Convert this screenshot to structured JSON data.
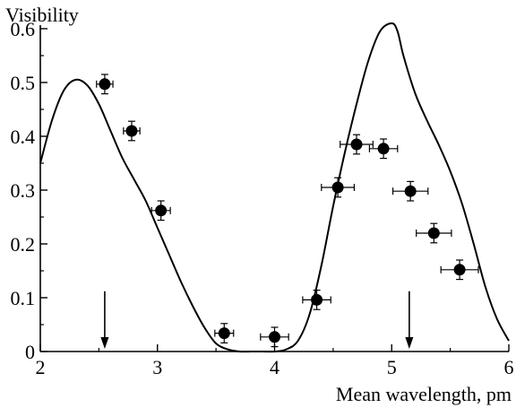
{
  "chart_data": {
    "type": "scatter",
    "title": "",
    "xlabel": "Mean wavelength, pm",
    "ylabel": "Visibility",
    "xlim": [
      2,
      6
    ],
    "ylim": [
      0,
      0.62
    ],
    "x_ticks": [
      "2",
      "3",
      "4",
      "5",
      "6"
    ],
    "y_ticks": [
      "0",
      "0.1",
      "0.2",
      "0.3",
      "0.4",
      "0.5",
      "0.6"
    ],
    "grid": false,
    "points": [
      {
        "x": 2.55,
        "y": 0.497,
        "xerr": 0.07,
        "yerr": 0.018
      },
      {
        "x": 2.78,
        "y": 0.41,
        "xerr": 0.07,
        "yerr": 0.018
      },
      {
        "x": 3.03,
        "y": 0.262,
        "xerr": 0.08,
        "yerr": 0.018
      },
      {
        "x": 3.57,
        "y": 0.034,
        "xerr": 0.08,
        "yerr": 0.018
      },
      {
        "x": 4.0,
        "y": 0.027,
        "xerr": 0.12,
        "yerr": 0.018
      },
      {
        "x": 4.36,
        "y": 0.096,
        "xerr": 0.12,
        "yerr": 0.018
      },
      {
        "x": 4.54,
        "y": 0.305,
        "xerr": 0.14,
        "yerr": 0.018
      },
      {
        "x": 4.7,
        "y": 0.385,
        "xerr": 0.14,
        "yerr": 0.018
      },
      {
        "x": 4.93,
        "y": 0.377,
        "xerr": 0.12,
        "yerr": 0.018
      },
      {
        "x": 5.16,
        "y": 0.298,
        "xerr": 0.15,
        "yerr": 0.018
      },
      {
        "x": 5.36,
        "y": 0.22,
        "xerr": 0.15,
        "yerr": 0.018
      },
      {
        "x": 5.58,
        "y": 0.152,
        "xerr": 0.16,
        "yerr": 0.018
      }
    ],
    "model_curve": [
      [
        2.0,
        0.35
      ],
      [
        2.1,
        0.43
      ],
      [
        2.2,
        0.485
      ],
      [
        2.3,
        0.505
      ],
      [
        2.4,
        0.495
      ],
      [
        2.5,
        0.46
      ],
      [
        2.6,
        0.41
      ],
      [
        2.7,
        0.36
      ],
      [
        2.8,
        0.32
      ],
      [
        2.9,
        0.28
      ],
      [
        3.0,
        0.23
      ],
      [
        3.1,
        0.18
      ],
      [
        3.2,
        0.13
      ],
      [
        3.3,
        0.085
      ],
      [
        3.4,
        0.045
      ],
      [
        3.5,
        0.015
      ],
      [
        3.6,
        0.004
      ],
      [
        3.7,
        0.0
      ],
      [
        3.8,
        0.0
      ],
      [
        3.9,
        0.0
      ],
      [
        4.0,
        0.0
      ],
      [
        4.1,
        0.004
      ],
      [
        4.2,
        0.02
      ],
      [
        4.3,
        0.07
      ],
      [
        4.4,
        0.16
      ],
      [
        4.5,
        0.27
      ],
      [
        4.6,
        0.37
      ],
      [
        4.7,
        0.46
      ],
      [
        4.8,
        0.54
      ],
      [
        4.9,
        0.595
      ],
      [
        5.0,
        0.61
      ],
      [
        5.05,
        0.595
      ],
      [
        5.1,
        0.55
      ],
      [
        5.2,
        0.48
      ],
      [
        5.3,
        0.43
      ],
      [
        5.4,
        0.385
      ],
      [
        5.5,
        0.335
      ],
      [
        5.6,
        0.275
      ],
      [
        5.7,
        0.2
      ],
      [
        5.8,
        0.12
      ],
      [
        5.9,
        0.06
      ],
      [
        6.0,
        0.02
      ]
    ],
    "arrows": [
      {
        "x": 2.55,
        "y_from": 0.112,
        "y_to": 0.0
      },
      {
        "x": 5.15,
        "y_from": 0.112,
        "y_to": 0.0
      }
    ]
  }
}
